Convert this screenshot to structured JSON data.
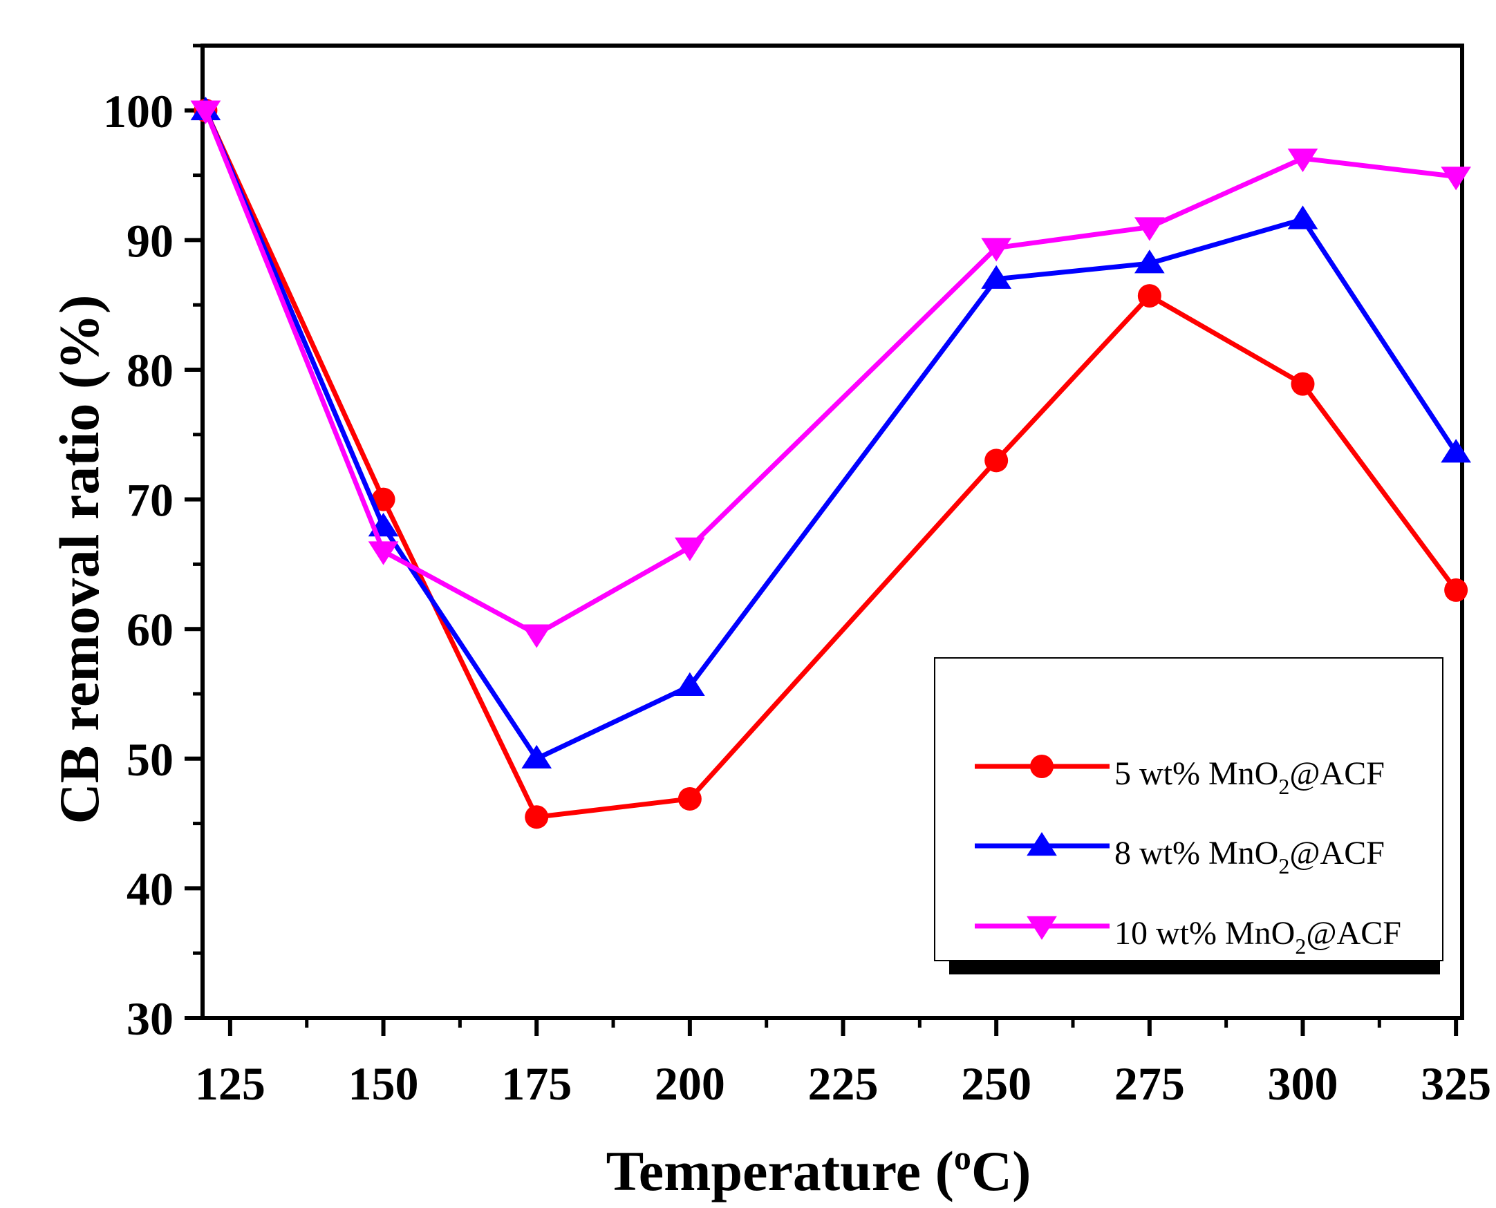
{
  "chart_data": {
    "type": "line",
    "title": "",
    "x": [
      121,
      150,
      175,
      200,
      250,
      275,
      300,
      325
    ],
    "xlim": [
      120.5,
      326
    ],
    "ylim": [
      30,
      105
    ],
    "xticks": [
      125,
      150,
      175,
      200,
      225,
      250,
      275,
      300,
      325
    ],
    "yticks": [
      30,
      40,
      50,
      60,
      70,
      80,
      90,
      100
    ],
    "xlabel": {
      "main": "Temperature (",
      "sup": "o",
      "end": "C)"
    },
    "ylabel": "CB removal ratio (%)",
    "legend_position": "bottom-right",
    "series": [
      {
        "name": "5 wt% MnO2@ACF",
        "label": {
          "main": "5 wt% MnO",
          "sub": "2",
          "end": "@ACF"
        },
        "color": "#ff0000",
        "marker": "circle",
        "values": [
          100,
          70,
          45.5,
          46.9,
          73,
          85.7,
          78.9,
          63
        ]
      },
      {
        "name": "8 wt% MnO2@ACF",
        "label": {
          "main": "8 wt% MnO",
          "sub": "2",
          "end": "@ACF"
        },
        "color": "#0000ff",
        "marker": "triangle-up",
        "values": [
          100,
          67.9,
          50,
          55.6,
          87,
          88.2,
          91.6,
          73.6
        ]
      },
      {
        "name": "10 wt% MnO2@ACF",
        "label": {
          "main": "10 wt% MnO",
          "sub": "2",
          "end": "@ACF"
        },
        "color": "#ff00ff",
        "marker": "triangle-down",
        "values": [
          100,
          66,
          59.6,
          66.3,
          89.4,
          91,
          96.3,
          94.9
        ]
      }
    ]
  }
}
